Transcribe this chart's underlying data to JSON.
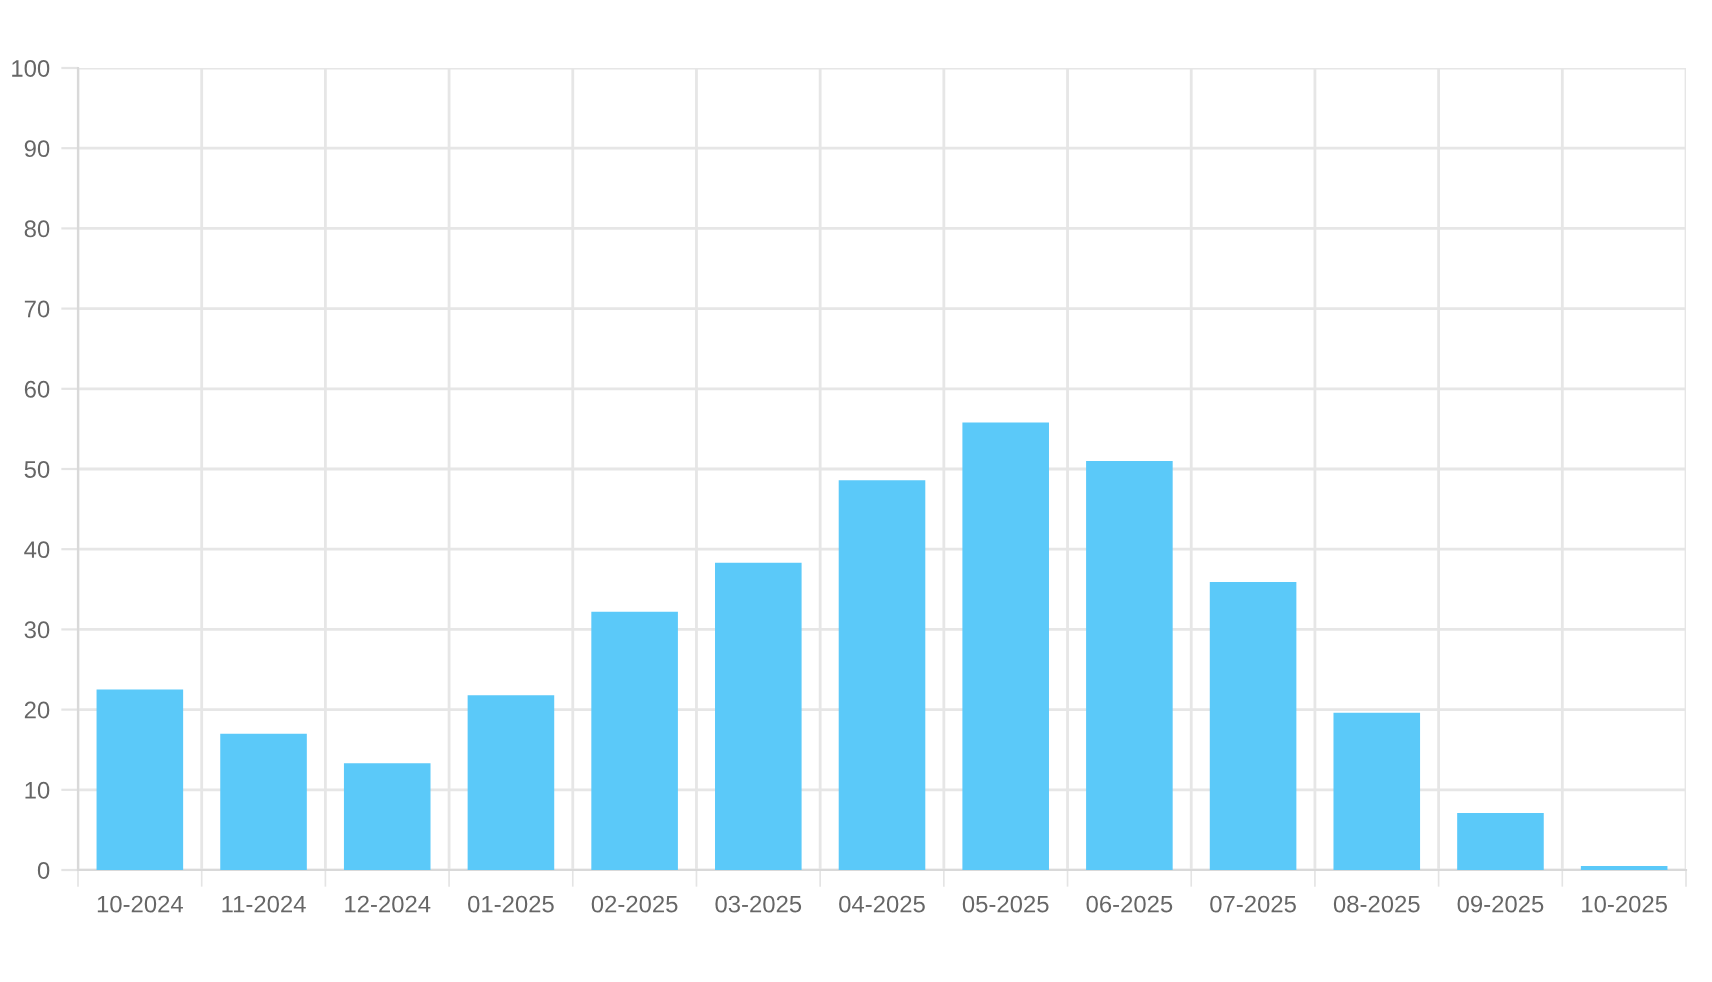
{
  "chart_data": {
    "type": "bar",
    "categories": [
      "10-2024",
      "11-2024",
      "12-2024",
      "01-2025",
      "02-2025",
      "03-2025",
      "04-2025",
      "05-2025",
      "06-2025",
      "07-2025",
      "08-2025",
      "09-2025",
      "10-2025"
    ],
    "values": [
      22.5,
      17.0,
      13.3,
      21.8,
      32.2,
      38.3,
      48.6,
      55.8,
      51.0,
      35.9,
      19.6,
      7.1,
      0.5
    ],
    "color": "#5bc9f9",
    "ylim": [
      0,
      100
    ],
    "yticks": [
      0,
      10,
      20,
      30,
      40,
      50,
      60,
      70,
      80,
      90,
      100
    ],
    "grid": true
  }
}
